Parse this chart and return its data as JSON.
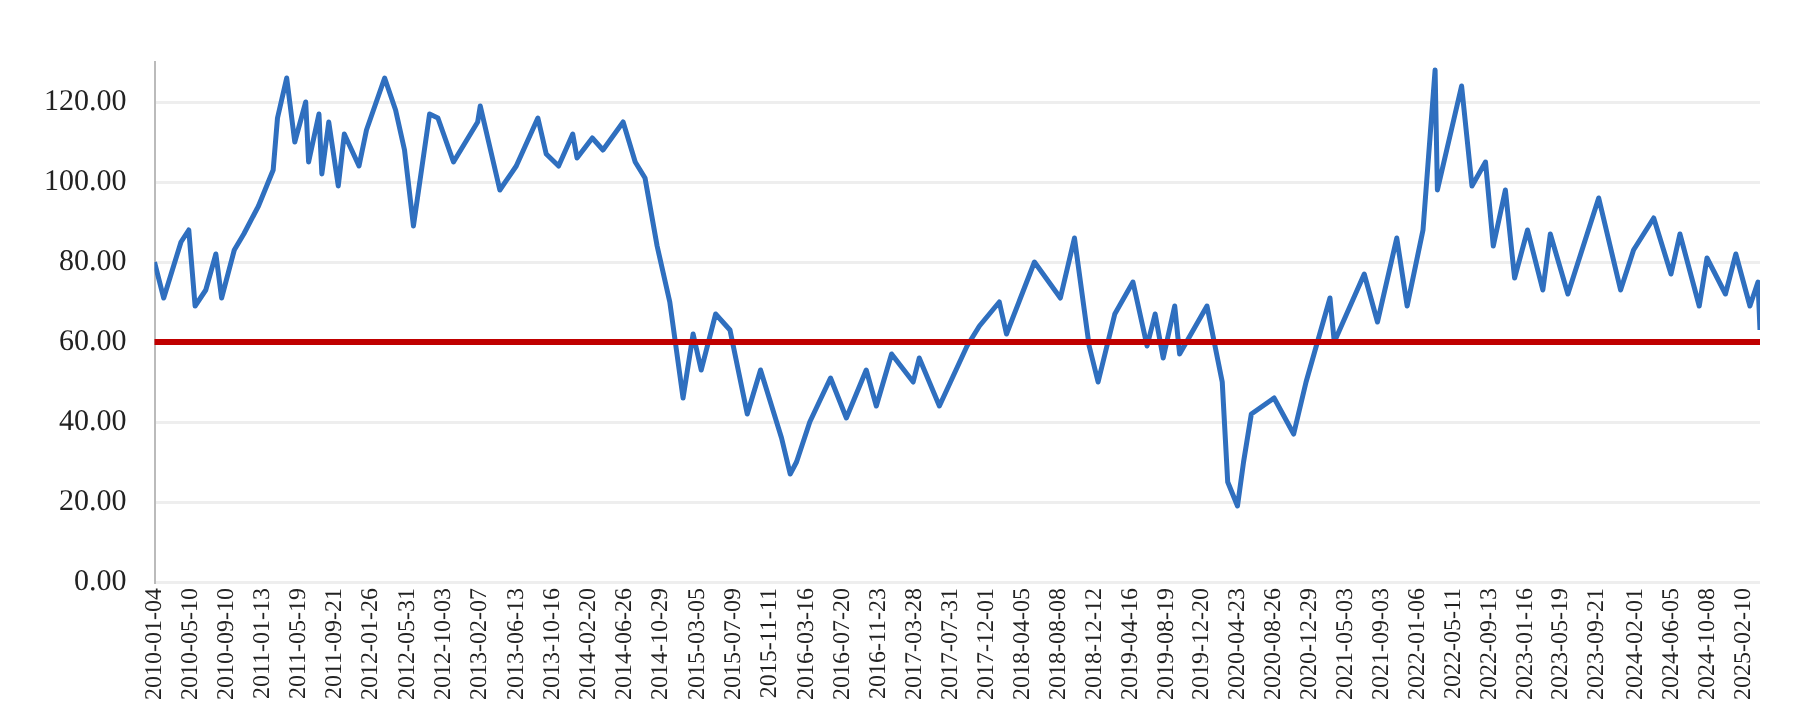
{
  "chart_data": {
    "type": "line",
    "grid": "y",
    "xlim": [
      "2010-01-04",
      "2025-04-09"
    ],
    "xticks": [
      "2010-01-04",
      "2010-05-10",
      "2010-09-10",
      "2011-01-13",
      "2011-05-19",
      "2011-09-21",
      "2012-01-26",
      "2012-05-31",
      "2012-10-03",
      "2013-02-07",
      "2013-06-13",
      "2013-10-16",
      "2014-02-20",
      "2014-06-26",
      "2014-10-29",
      "2015-03-05",
      "2015-07-09",
      "2015-11-11",
      "2016-03-16",
      "2016-07-20",
      "2016-11-23",
      "2017-03-28",
      "2017-07-31",
      "2017-12-01",
      "2018-04-05",
      "2018-08-08",
      "2018-12-12",
      "2019-04-16",
      "2019-08-19",
      "2019-12-20",
      "2020-04-23",
      "2020-08-26",
      "2020-12-29",
      "2021-05-03",
      "2021-09-03",
      "2022-01-06",
      "2022-05-11",
      "2022-09-13",
      "2023-01-16",
      "2023-05-19",
      "2023-09-21",
      "2024-02-01",
      "2024-06-05",
      "2024-10-08",
      "2025-02-10"
    ],
    "ylim": [
      0,
      130
    ],
    "yticks": [
      {
        "value": 0,
        "label": "0.00"
      },
      {
        "value": 20,
        "label": "20.00"
      },
      {
        "value": 40,
        "label": "40.00"
      },
      {
        "value": 60,
        "label": "60.00"
      },
      {
        "value": 80,
        "label": "80.00"
      },
      {
        "value": 100,
        "label": "100.00"
      },
      {
        "value": 120,
        "label": "120.00"
      }
    ],
    "ref_lines": [
      {
        "axis": "y",
        "value": 60,
        "color": "#c00000"
      }
    ],
    "x": [
      "2010-01-04",
      "2010-02-05",
      "2010-04-06",
      "2010-05-03",
      "2010-05-25",
      "2010-07-01",
      "2010-08-05",
      "2010-08-25",
      "2010-10-08",
      "2010-11-10",
      "2010-12-31",
      "2011-02-20",
      "2011-03-07",
      "2011-04-08",
      "2011-05-06",
      "2011-06-13",
      "2011-06-23",
      "2011-07-29",
      "2011-08-08",
      "2011-09-01",
      "2011-10-04",
      "2011-10-25",
      "2011-12-15",
      "2012-01-10",
      "2012-03-13",
      "2012-04-20",
      "2012-05-21",
      "2012-06-21",
      "2012-08-16",
      "2012-09-14",
      "2012-11-07",
      "2013-01-30",
      "2013-02-08",
      "2013-04-17",
      "2013-06-13",
      "2013-08-27",
      "2013-09-25",
      "2013-11-07",
      "2013-12-26",
      "2014-01-10",
      "2014-03-04",
      "2014-04-10",
      "2014-06-19",
      "2014-07-31",
      "2014-09-03",
      "2014-10-15",
      "2014-11-28",
      "2015-01-13",
      "2015-02-17",
      "2015-03-17",
      "2015-05-06",
      "2015-06-25",
      "2015-08-24",
      "2015-10-09",
      "2015-12-21",
      "2016-01-20",
      "2016-02-11",
      "2016-03-28",
      "2016-06-08",
      "2016-08-02",
      "2016-10-10",
      "2016-11-14",
      "2017-01-06",
      "2017-03-22",
      "2017-04-12",
      "2017-06-21",
      "2017-09-25",
      "2017-11-07",
      "2018-01-15",
      "2018-02-09",
      "2018-05-17",
      "2018-08-15",
      "2018-10-03",
      "2018-11-23",
      "2018-12-24",
      "2019-02-20",
      "2019-04-24",
      "2019-06-12",
      "2019-07-10",
      "2019-08-07",
      "2019-09-16",
      "2019-10-03",
      "2020-01-06",
      "2020-02-28",
      "2020-03-18",
      "2020-04-21",
      "2020-05-12",
      "2020-06-08",
      "2020-08-26",
      "2020-11-02",
      "2020-12-15",
      "2021-03-08",
      "2021-03-23",
      "2021-07-05",
      "2021-08-20",
      "2021-10-26",
      "2021-12-01",
      "2022-01-25",
      "2022-03-08",
      "2022-03-16",
      "2022-06-08",
      "2022-07-14",
      "2022-08-30",
      "2022-09-26",
      "2022-11-07",
      "2022-12-09",
      "2023-01-23",
      "2023-03-17",
      "2023-04-12",
      "2023-06-12",
      "2023-09-27",
      "2023-12-12",
      "2024-01-26",
      "2024-04-05",
      "2024-06-04",
      "2024-07-05",
      "2024-09-10",
      "2024-10-07",
      "2024-12-10",
      "2025-01-15",
      "2025-03-05",
      "2025-04-02",
      "2025-04-09"
    ],
    "series": [
      {
        "color": "#2f6fbf",
        "values": [
          80,
          71,
          85,
          88,
          69,
          73,
          82,
          71,
          83,
          87,
          94,
          103,
          116,
          126,
          110,
          120,
          105,
          117,
          102,
          115,
          99,
          112,
          104,
          113,
          126,
          118,
          108,
          89,
          117,
          116,
          105,
          115,
          119,
          98,
          104,
          116,
          107,
          104,
          112,
          106,
          111,
          108,
          115,
          105,
          101,
          84,
          70,
          46,
          62,
          53,
          67,
          63,
          42,
          53,
          36,
          27,
          30,
          40,
          51,
          41,
          53,
          44,
          57,
          50,
          56,
          44,
          59,
          64,
          70,
          62,
          80,
          71,
          86,
          59,
          50,
          67,
          75,
          59,
          67,
          56,
          69,
          57,
          69,
          50,
          25,
          19,
          30,
          42,
          46,
          37,
          50,
          71,
          60,
          77,
          65,
          86,
          69,
          88,
          128,
          98,
          124,
          99,
          105,
          84,
          98,
          76,
          88,
          73,
          87,
          72,
          96,
          73,
          83,
          91,
          77,
          87,
          69,
          81,
          72,
          82,
          69,
          75,
          63
        ]
      }
    ]
  }
}
